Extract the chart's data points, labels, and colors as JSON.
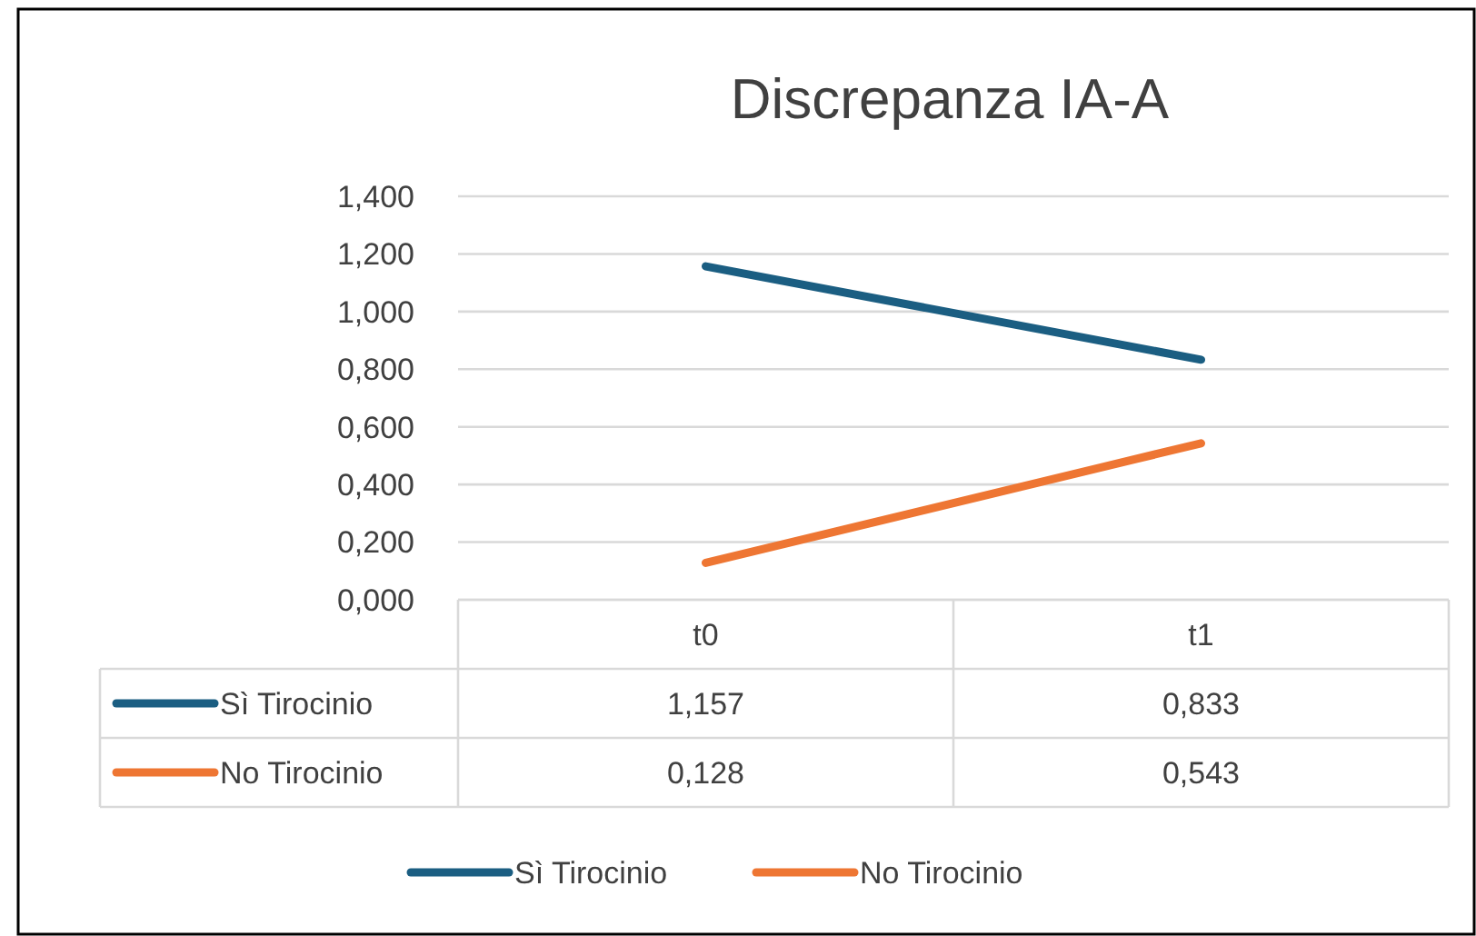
{
  "chart_data": {
    "type": "line",
    "title": "Discrepanza IA-A",
    "categories": [
      "t0",
      "t1"
    ],
    "series": [
      {
        "name": "Sì Tirocinio",
        "color": "#1b5e82",
        "values": [
          1.157,
          0.833
        ],
        "value_labels": [
          "1,157",
          "0,833"
        ]
      },
      {
        "name": "No Tirocinio",
        "color": "#ee7633",
        "values": [
          0.128,
          0.543
        ],
        "value_labels": [
          "0,128",
          "0,543"
        ]
      }
    ],
    "ylim": [
      0,
      1.4
    ],
    "yticks": [
      {
        "value": 0,
        "label": "0,000"
      },
      {
        "value": 0.2,
        "label": "0,200"
      },
      {
        "value": 0.4,
        "label": "0,400"
      },
      {
        "value": 0.6,
        "label": "0,600"
      },
      {
        "value": 0.8,
        "label": "0,800"
      },
      {
        "value": 1.0,
        "label": "1,000"
      },
      {
        "value": 1.2,
        "label": "1,200"
      },
      {
        "value": 1.4,
        "label": "1,400"
      }
    ],
    "grid": "y",
    "legend": "bottom",
    "marker": "none",
    "line_style": "solid"
  }
}
